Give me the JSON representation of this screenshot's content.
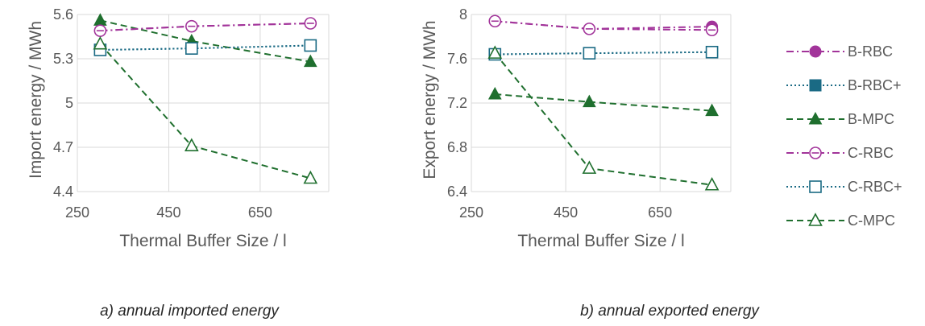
{
  "chart_data": [
    {
      "type": "line",
      "xlabel": "Thermal Buffer Size / l",
      "ylabel": "Import energy / MWh",
      "xlim": [
        250,
        800
      ],
      "xticks": [
        250,
        450,
        650
      ],
      "ylim": [
        4.4,
        5.6
      ],
      "yticks": [
        4.4,
        4.7,
        5,
        5.3,
        5.6
      ],
      "ytick_labels": [
        "4.4",
        "4.7",
        "5",
        "5.3",
        "5.6"
      ],
      "grid": "vertical and horizontal",
      "caption": "a) annual imported energy",
      "series": [
        {
          "name": "B-RBC",
          "x": [
            300,
            500,
            760
          ],
          "y": [
            5.49,
            5.52,
            5.54
          ]
        },
        {
          "name": "B-RBC+",
          "x": [
            300,
            500,
            760
          ],
          "y": [
            5.36,
            5.37,
            5.39
          ]
        },
        {
          "name": "B-MPC",
          "x": [
            300,
            500,
            760
          ],
          "y": [
            5.56,
            5.42,
            5.28
          ]
        },
        {
          "name": "C-RBC",
          "x": [
            300,
            500,
            760
          ],
          "y": [
            5.49,
            5.52,
            5.54
          ]
        },
        {
          "name": "C-RBC+",
          "x": [
            300,
            500,
            760
          ],
          "y": [
            5.36,
            5.37,
            5.39
          ]
        },
        {
          "name": "C-MPC",
          "x": [
            300,
            500,
            760
          ],
          "y": [
            5.4,
            4.71,
            4.49
          ]
        }
      ]
    },
    {
      "type": "line",
      "xlabel": "Thermal Buffer Size / l",
      "ylabel": "Export energy / MWh",
      "xlim": [
        250,
        800
      ],
      "xticks": [
        250,
        450,
        650
      ],
      "ylim": [
        6.4,
        8.0
      ],
      "yticks": [
        6.4,
        6.8,
        7.2,
        7.6,
        8.0
      ],
      "ytick_labels": [
        "6.4",
        "6.8",
        "7.2",
        "7.6",
        "8"
      ],
      "grid": "vertical and horizontal",
      "caption": "b) annual exported energy",
      "series": [
        {
          "name": "B-RBC",
          "x": [
            300,
            500,
            760
          ],
          "y": [
            7.94,
            7.87,
            7.89
          ]
        },
        {
          "name": "B-RBC+",
          "x": [
            300,
            500,
            760
          ],
          "y": [
            7.64,
            7.65,
            7.66
          ]
        },
        {
          "name": "B-MPC",
          "x": [
            300,
            500,
            760
          ],
          "y": [
            7.28,
            7.21,
            7.13
          ]
        },
        {
          "name": "C-RBC",
          "x": [
            300,
            500,
            760
          ],
          "y": [
            7.94,
            7.87,
            7.86
          ]
        },
        {
          "name": "C-RBC+",
          "x": [
            300,
            500,
            760
          ],
          "y": [
            7.64,
            7.65,
            7.66
          ]
        },
        {
          "name": "C-MPC",
          "x": [
            300,
            500,
            760
          ],
          "y": [
            7.65,
            6.61,
            6.46
          ]
        }
      ]
    }
  ],
  "series_styles": {
    "B-RBC": {
      "color": "#A2349A",
      "dash": "dashdot",
      "marker": "circle",
      "filled": true
    },
    "B-RBC+": {
      "color": "#1A6A84",
      "dash": "dot",
      "marker": "square",
      "filled": true
    },
    "B-MPC": {
      "color": "#1F6F2E",
      "dash": "dash",
      "marker": "triangle",
      "filled": true
    },
    "C-RBC": {
      "color": "#A2349A",
      "dash": "dashdot",
      "marker": "circle",
      "filled": false
    },
    "C-RBC+": {
      "color": "#1A6A84",
      "dash": "dot",
      "marker": "square",
      "filled": false
    },
    "C-MPC": {
      "color": "#1F6F2E",
      "dash": "dash",
      "marker": "triangle",
      "filled": false
    }
  },
  "legend": {
    "placement": "right",
    "entries": [
      "B-RBC",
      "B-RBC+",
      "B-MPC",
      "C-RBC",
      "C-RBC+",
      "C-MPC"
    ]
  },
  "captions": {
    "a": "a) annual imported energy",
    "b": "b) annual exported energy"
  }
}
